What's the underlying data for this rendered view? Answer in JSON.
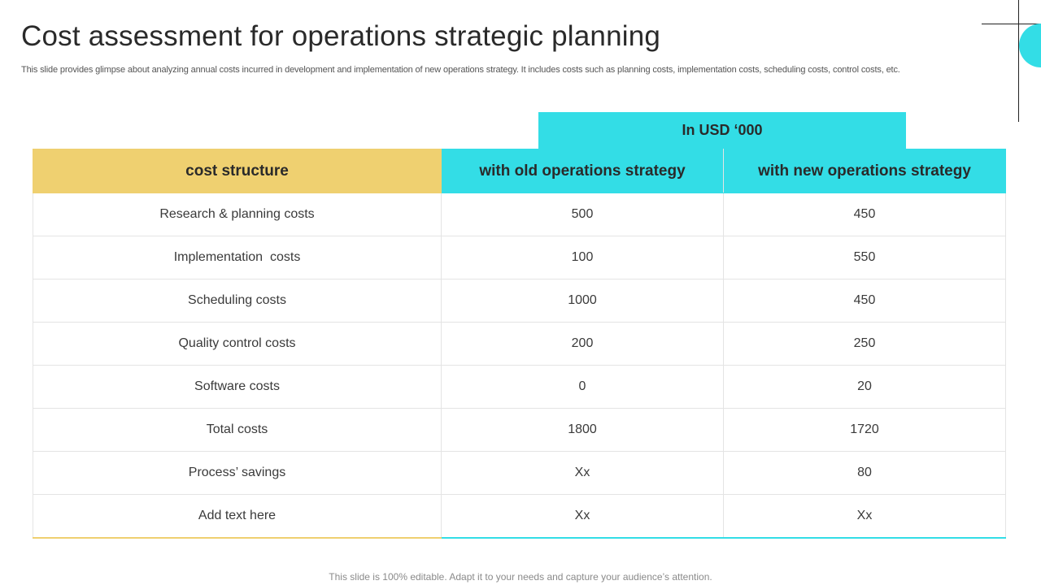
{
  "slide": {
    "title": "Cost assessment for operations strategic planning",
    "subtitle": "This slide provides glimpse about analyzing annual costs incurred in development and implementation of new operations strategy. It includes costs such as planning costs, implementation costs, scheduling costs, control costs, etc.",
    "footer": "This slide is 100% editable. Adapt it to your needs and capture your audience’s attention."
  },
  "table": {
    "unit_header": "In USD ‘000",
    "columns": [
      "cost structure",
      "with old operations strategy",
      "with new operations strategy"
    ],
    "rows": [
      [
        "Research & planning costs",
        "500",
        "450"
      ],
      [
        "Implementation  costs",
        "100",
        "550"
      ],
      [
        "Scheduling costs",
        "1000",
        "450"
      ],
      [
        "Quality control costs",
        "200",
        "250"
      ],
      [
        "Software costs",
        "0",
        "20"
      ],
      [
        "Total costs",
        "1800",
        "1720"
      ],
      [
        "Process’ savings",
        "Xx",
        "80"
      ],
      [
        "Add text here",
        "Xx",
        "Xx"
      ]
    ]
  },
  "colors": {
    "accent_cyan": "#33dde6",
    "accent_yellow": "#efd070"
  }
}
